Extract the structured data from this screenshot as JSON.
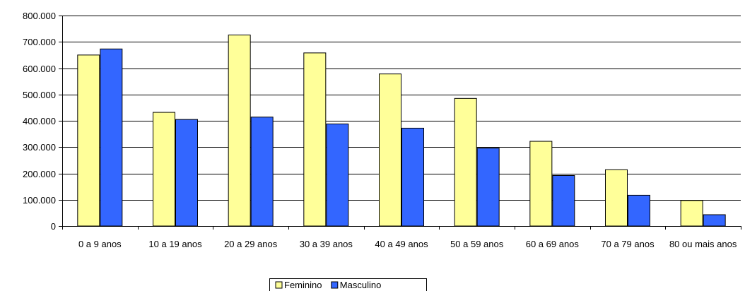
{
  "chart_data": {
    "type": "bar",
    "title": "",
    "xlabel": "",
    "ylabel": "",
    "categories": [
      "0 a 9 anos",
      "10 a 19 anos",
      "20 a 29 anos",
      "30 a 39 anos",
      "40 a 49 anos",
      "50 a 59 anos",
      "60 a 69 anos",
      "70 a 79 anos",
      "80 ou mais anos"
    ],
    "series": [
      {
        "name": "Feminino",
        "color": "#ffff99",
        "values": [
          650000,
          432000,
          726000,
          658000,
          578000,
          485000,
          322000,
          214000,
          97000
        ]
      },
      {
        "name": "Masculino",
        "color": "#3366ff",
        "values": [
          673000,
          405000,
          414000,
          388000,
          372000,
          296000,
          192000,
          117000,
          43000
        ]
      }
    ],
    "ylim": [
      0,
      800000
    ],
    "yticks": [
      0,
      100000,
      200000,
      300000,
      400000,
      500000,
      600000,
      700000,
      800000
    ],
    "ytick_labels": [
      "0",
      "100.000",
      "200.000",
      "300.000",
      "400.000",
      "500.000",
      "600.000",
      "700.000",
      "800.000"
    ],
    "grid": true,
    "legend_position": "bottom-center"
  }
}
